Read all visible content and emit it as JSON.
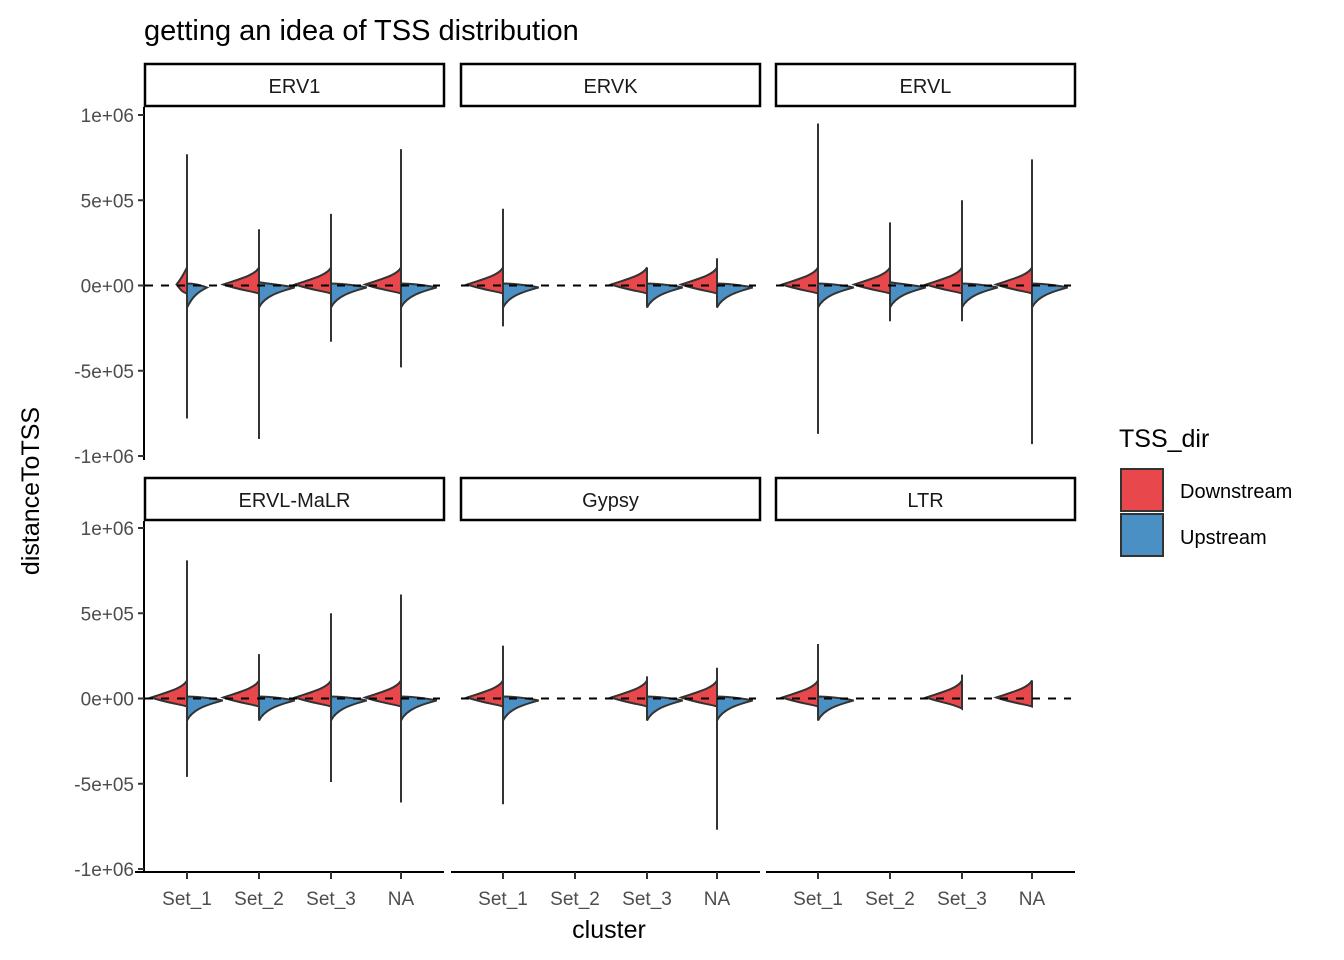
{
  "chart_data": {
    "type": "split-violin",
    "title": "getting an idea of TSS distribution",
    "xlabel": "cluster",
    "ylabel": "distanceToTSS",
    "ylim": [
      -1000000,
      1000000
    ],
    "yticks": [
      1000000,
      500000,
      0,
      -500000,
      -1000000
    ],
    "ytick_labels": [
      "1e+06",
      "5e+05",
      "0e+00",
      "-5e+05",
      "-1e+06"
    ],
    "categories": [
      "Set_1",
      "Set_2",
      "Set_3",
      "NA"
    ],
    "reference_line": {
      "y": 0,
      "style": "dashed"
    },
    "legend": {
      "title": "TSS_dir",
      "position": "right",
      "entries": [
        {
          "label": "Downstream",
          "color": "#E8474B"
        },
        {
          "label": "Upstream",
          "color": "#4A90C4"
        }
      ]
    },
    "facets": [
      {
        "name": "ERV1",
        "violins": [
          {
            "cluster": "Set_1",
            "down": {
              "max": 770000,
              "min": -5000,
              "peak": 0.22
            },
            "up": {
              "max": 5000,
              "min": -780000,
              "peak": 0.42
            }
          },
          {
            "cluster": "Set_2",
            "down": {
              "max": 330000,
              "min": -20000,
              "peak": 0.75
            },
            "up": {
              "max": 20000,
              "min": -900000,
              "peak": 0.75
            }
          },
          {
            "cluster": "Set_3",
            "down": {
              "max": 420000,
              "min": -10000,
              "peak": 0.75
            },
            "up": {
              "max": 5000,
              "min": -330000,
              "peak": 0.75
            }
          },
          {
            "cluster": "NA",
            "down": {
              "max": 800000,
              "min": -5000,
              "peak": 0.75
            },
            "up": {
              "max": 5000,
              "min": -480000,
              "peak": 0.75
            }
          }
        ]
      },
      {
        "name": "ERVK",
        "violins": [
          {
            "cluster": "Set_1",
            "down": {
              "max": 450000,
              "min": -5000,
              "peak": 0.75
            },
            "up": {
              "max": 5000,
              "min": -240000,
              "peak": 0.75
            }
          },
          {
            "cluster": "Set_3",
            "down": {
              "max": 50000,
              "min": -5000,
              "peak": 0.75
            },
            "up": {
              "max": 5000,
              "min": -80000,
              "peak": 0.75
            }
          },
          {
            "cluster": "NA",
            "down": {
              "max": 160000,
              "min": -5000,
              "peak": 0.75
            },
            "up": {
              "max": 5000,
              "min": -110000,
              "peak": 0.75
            }
          }
        ]
      },
      {
        "name": "ERVL",
        "violins": [
          {
            "cluster": "Set_1",
            "down": {
              "max": 950000,
              "min": -5000,
              "peak": 0.75
            },
            "up": {
              "max": 5000,
              "min": -870000,
              "peak": 0.75
            }
          },
          {
            "cluster": "Set_2",
            "down": {
              "max": 370000,
              "min": -20000,
              "peak": 0.75
            },
            "up": {
              "max": 20000,
              "min": -210000,
              "peak": 0.75
            }
          },
          {
            "cluster": "Set_3",
            "down": {
              "max": 500000,
              "min": -10000,
              "peak": 0.75
            },
            "up": {
              "max": 5000,
              "min": -210000,
              "peak": 0.75
            }
          },
          {
            "cluster": "NA",
            "down": {
              "max": 740000,
              "min": -5000,
              "peak": 0.75
            },
            "up": {
              "max": 5000,
              "min": -930000,
              "peak": 0.75
            }
          }
        ]
      },
      {
        "name": "ERVL-MaLR",
        "violins": [
          {
            "cluster": "Set_1",
            "down": {
              "max": 810000,
              "min": -5000,
              "peak": 0.75
            },
            "up": {
              "max": 5000,
              "min": -460000,
              "peak": 0.75
            }
          },
          {
            "cluster": "Set_2",
            "down": {
              "max": 260000,
              "min": -10000,
              "peak": 0.75
            },
            "up": {
              "max": 5000,
              "min": -90000,
              "peak": 0.75
            }
          },
          {
            "cluster": "Set_3",
            "down": {
              "max": 500000,
              "min": -10000,
              "peak": 0.75
            },
            "up": {
              "max": 5000,
              "min": -490000,
              "peak": 0.75
            }
          },
          {
            "cluster": "NA",
            "down": {
              "max": 610000,
              "min": -5000,
              "peak": 0.75
            },
            "up": {
              "max": 5000,
              "min": -610000,
              "peak": 0.75
            }
          }
        ]
      },
      {
        "name": "Gypsy",
        "violins": [
          {
            "cluster": "Set_1",
            "down": {
              "max": 310000,
              "min": -5000,
              "peak": 0.75
            },
            "up": {
              "max": 5000,
              "min": -620000,
              "peak": 0.75
            }
          },
          {
            "cluster": "Set_3",
            "down": {
              "max": 130000,
              "min": -10000,
              "peak": 0.75
            },
            "up": {
              "max": 5000,
              "min": -60000,
              "peak": 0.75
            }
          },
          {
            "cluster": "NA",
            "down": {
              "max": 180000,
              "min": -5000,
              "peak": 0.75
            },
            "up": {
              "max": 5000,
              "min": -770000,
              "peak": 0.75
            }
          }
        ]
      },
      {
        "name": "LTR",
        "violins": [
          {
            "cluster": "Set_1",
            "down": {
              "max": 320000,
              "min": -20000,
              "peak": 0.75
            },
            "up": {
              "max": 10000,
              "min": -120000,
              "peak": 0.75
            }
          },
          {
            "cluster": "Set_3",
            "down": {
              "max": 140000,
              "min": -60000,
              "peak": 0.75
            },
            "up": null
          },
          {
            "cluster": "NA",
            "down": {
              "max": 100000,
              "min": -10000,
              "peak": 0.75
            },
            "up": null
          }
        ]
      }
    ]
  }
}
